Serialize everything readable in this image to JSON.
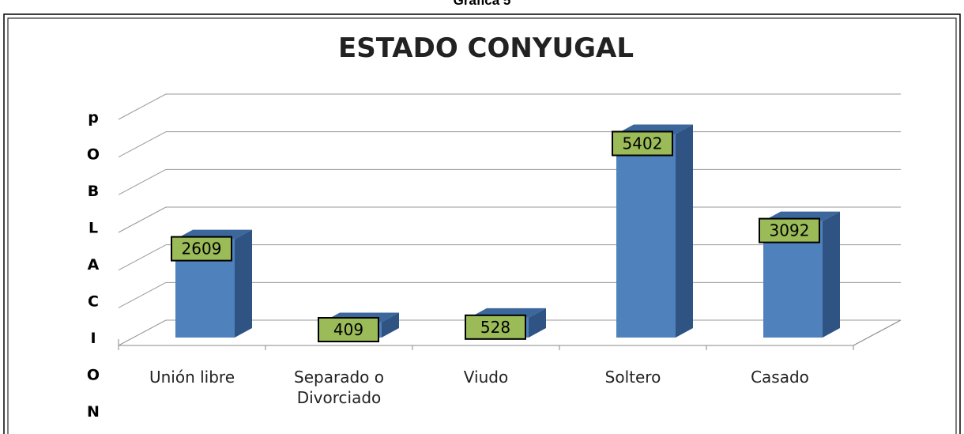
{
  "header": "Gráfica 5",
  "chart_data": {
    "type": "bar3d",
    "title": "ESTADO CONYUGAL",
    "y_label": "pOBLACION",
    "categories": [
      "Unión libre",
      "Separado o Divorciado",
      "Viudo",
      "Soltero",
      "Casado"
    ],
    "values": [
      2609,
      409,
      528,
      5402,
      3092
    ],
    "color": "#4f81bd",
    "label_color": "#9bbb59",
    "ylim": [
      0,
      6000
    ],
    "yticks": [
      0,
      1000,
      2000,
      3000,
      4000,
      5000,
      6000
    ],
    "grid": true
  }
}
